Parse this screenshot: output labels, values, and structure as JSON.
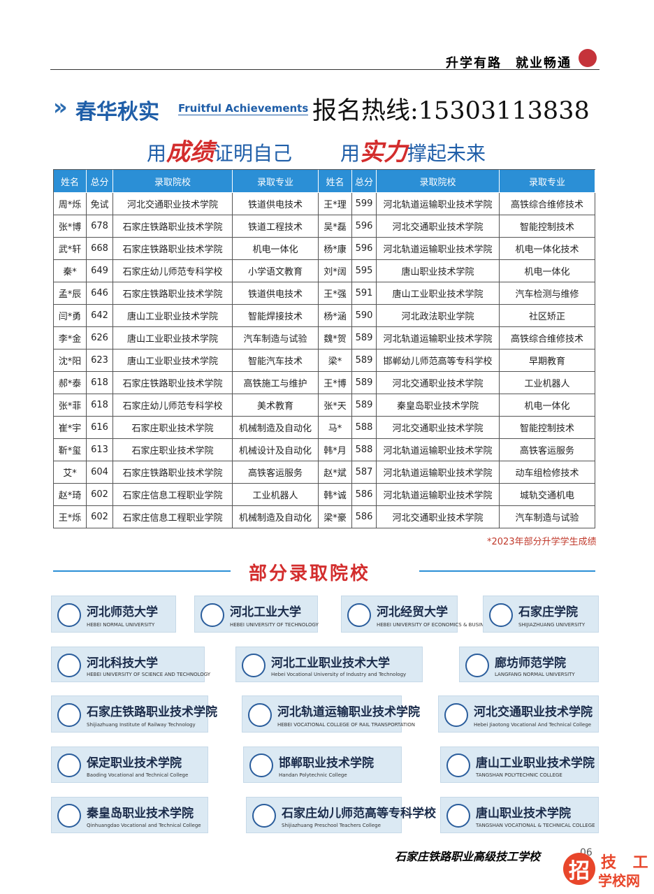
{
  "header": {
    "slogan": "升学有路　就业畅通"
  },
  "section": {
    "title": "春华秋实",
    "subtitle": "Fruitful Achievements"
  },
  "hotline": "报名热线:15303113838",
  "motto": {
    "left": [
      "用",
      "成绩",
      "证明自己"
    ],
    "right": [
      "用",
      "实力",
      "撑起未来"
    ]
  },
  "table": {
    "columns": [
      "姓名",
      "总分",
      "录取院校",
      "录取专业",
      "姓名",
      "总分",
      "录取院校",
      "录取专业"
    ],
    "rows": [
      [
        "周*烁",
        "免试",
        "河北交通职业技术学院",
        "铁道供电技术",
        "王*理",
        "599",
        "河北轨道运输职业技术学院",
        "高铁综合维修技术"
      ],
      [
        "张*博",
        "678",
        "石家庄铁路职业技术学院",
        "铁道工程技术",
        "吴*磊",
        "596",
        "河北交通职业技术学院",
        "智能控制技术"
      ],
      [
        "武*轩",
        "668",
        "石家庄铁路职业技术学院",
        "机电一体化",
        "杨*康",
        "596",
        "河北轨道运输职业技术学院",
        "机电一体化技术"
      ],
      [
        "秦*",
        "649",
        "石家庄幼儿师范专科学校",
        "小学语文教育",
        "刘*阔",
        "595",
        "唐山职业技术学院",
        "机电一体化"
      ],
      [
        "孟*辰",
        "646",
        "石家庄铁路职业技术学院",
        "铁道供电技术",
        "王*强",
        "591",
        "唐山工业职业技术学院",
        "汽车检测与维修"
      ],
      [
        "闫*勇",
        "642",
        "唐山工业职业技术学院",
        "智能焊接技术",
        "杨*涵",
        "590",
        "河北政法职业学院",
        "社区矫正"
      ],
      [
        "李*金",
        "626",
        "唐山工业职业技术学院",
        "汽车制造与试验",
        "魏*贺",
        "589",
        "河北轨道运输职业技术学院",
        "高铁综合维修技术"
      ],
      [
        "沈*阳",
        "623",
        "唐山工业职业技术学院",
        "智能汽车技术",
        "梁*",
        "589",
        "邯郸幼儿师范高等专科学校",
        "早期教育"
      ],
      [
        "郝*泰",
        "618",
        "石家庄铁路职业技术学院",
        "高铁施工与维护",
        "王*博",
        "589",
        "河北交通职业技术学院",
        "工业机器人"
      ],
      [
        "张*菲",
        "618",
        "石家庄幼儿师范专科学校",
        "美术教育",
        "张*天",
        "589",
        "秦皇岛职业技术学院",
        "机电一体化"
      ],
      [
        "崔*宇",
        "616",
        "石家庄职业技术学院",
        "机械制造及自动化",
        "马*",
        "588",
        "河北交通职业技术学院",
        "智能控制技术"
      ],
      [
        "靳*玺",
        "613",
        "石家庄职业技术学院",
        "机械设计及自动化",
        "韩*月",
        "588",
        "河北轨道运输职业技术学院",
        "高铁客运服务"
      ],
      [
        "艾*",
        "604",
        "石家庄铁路职业技术学院",
        "高铁客运服务",
        "赵*斌",
        "587",
        "河北轨道运输职业技术学院",
        "动车组检修技术"
      ],
      [
        "赵*琦",
        "602",
        "石家庄信息工程职业学院",
        "工业机器人",
        "韩*诚",
        "586",
        "河北轨道运输职业技术学院",
        "城轨交通机电"
      ],
      [
        "王*烁",
        "602",
        "石家庄信息工程职业学院",
        "机械制造及自动化",
        "梁*豪",
        "586",
        "河北交通职业技术学院",
        "汽车制造与试验"
      ]
    ],
    "note": "*2023年部分升学学生成绩"
  },
  "schools": {
    "title": "部分录取院校",
    "items": [
      {
        "name": "河北师范大学",
        "english": "HEBEI NORMAL UNIVERSITY"
      },
      {
        "name": "河北工业大学",
        "english": "HEBEI UNIVERSITY OF TECHNOLOGY"
      },
      {
        "name": "河北经贸大学",
        "english": "HEBEI UNIVERSITY OF ECONOMICS & BUSINESS"
      },
      {
        "name": "石家庄学院",
        "english": "SHIJIAZHUANG UNIVERSITY"
      },
      {
        "name": "河北科技大学",
        "english": "HEBEI UNIVERSITY OF SCIENCE AND TECHNOLOGY"
      },
      {
        "name": "河北工业职业技术大学",
        "english": "Hebei Vocational University of Industry and Technology"
      },
      {
        "name": "廊坊师范学院",
        "english": "LANGFANG NORMAL UNIVERSITY"
      },
      {
        "name": "石家庄铁路职业技术学院",
        "english": "Shijiazhuang Institute of Railway Technology"
      },
      {
        "name": "河北轨道运输职业技术学院",
        "english": "HEBEI VOCATIONAL COLLEGE OF RAIL TRANSPORTATION"
      },
      {
        "name": "河北交通职业技术学院",
        "english": "Hebei Jiaotong Vocational And Technical College"
      },
      {
        "name": "保定职业技术学院",
        "english": "Baoding Vocational and Technical College"
      },
      {
        "name": "邯郸职业技术学院",
        "english": "Handan Polytechnic College"
      },
      {
        "name": "唐山工业职业技术学院",
        "english": "TANGSHAN POLYTECHNIC COLLEGE"
      },
      {
        "name": "秦皇岛职业技术学院",
        "english": "Qinhuangdao Vocational and Technical College"
      },
      {
        "name": "石家庄幼儿师范高等专科学校",
        "english": "Shijiazhuang Preschool Teachers College"
      },
      {
        "name": "唐山职业技术学院",
        "english": "TANGSHAN VOCATIONAL & TECHNICAL COLLEGE"
      }
    ]
  },
  "footer": {
    "school": "石家庄铁路职业高级技工学校",
    "page": "06"
  },
  "watermark": {
    "icon": "招",
    "line1": "技 工",
    "line2": "学校网"
  }
}
